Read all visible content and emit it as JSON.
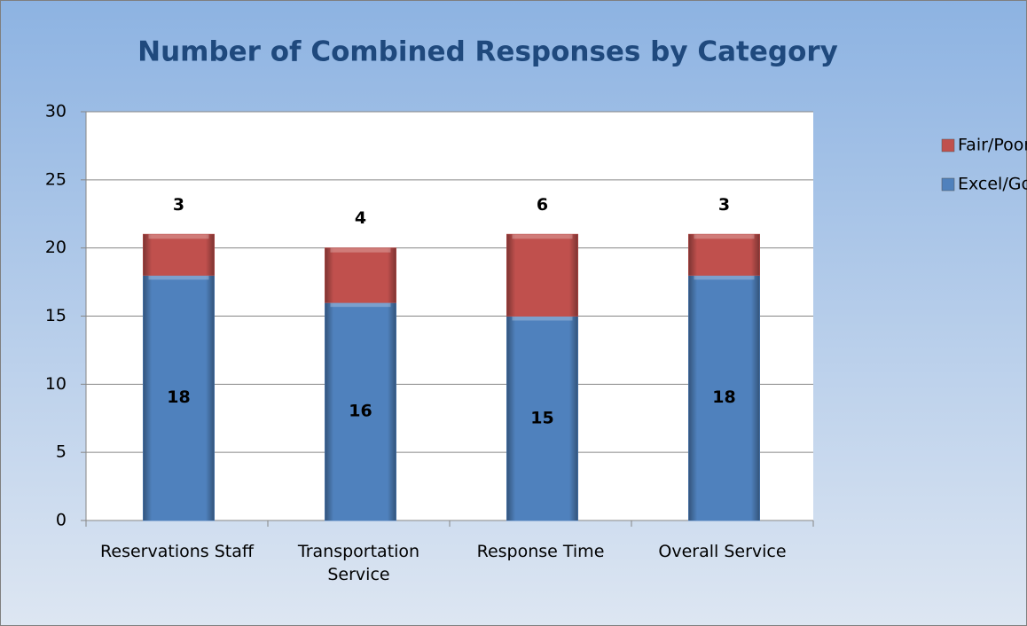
{
  "chart_data": {
    "type": "stacked_bar",
    "title": "Number of Combined Responses by Category",
    "categories": [
      "Reservations Staff",
      "Transportation Service",
      "Response Time",
      "Overall Service"
    ],
    "series": [
      {
        "name": "Excel/Good",
        "color": "#4f81bd",
        "values": [
          18,
          16,
          15,
          18
        ]
      },
      {
        "name": "Fair/Poor",
        "color": "#c0504d",
        "values": [
          3,
          4,
          6,
          3
        ]
      }
    ],
    "ylim": [
      0,
      30
    ],
    "yticks": [
      0,
      5,
      10,
      15,
      20,
      25,
      30
    ],
    "grid": true,
    "legend": "right"
  }
}
